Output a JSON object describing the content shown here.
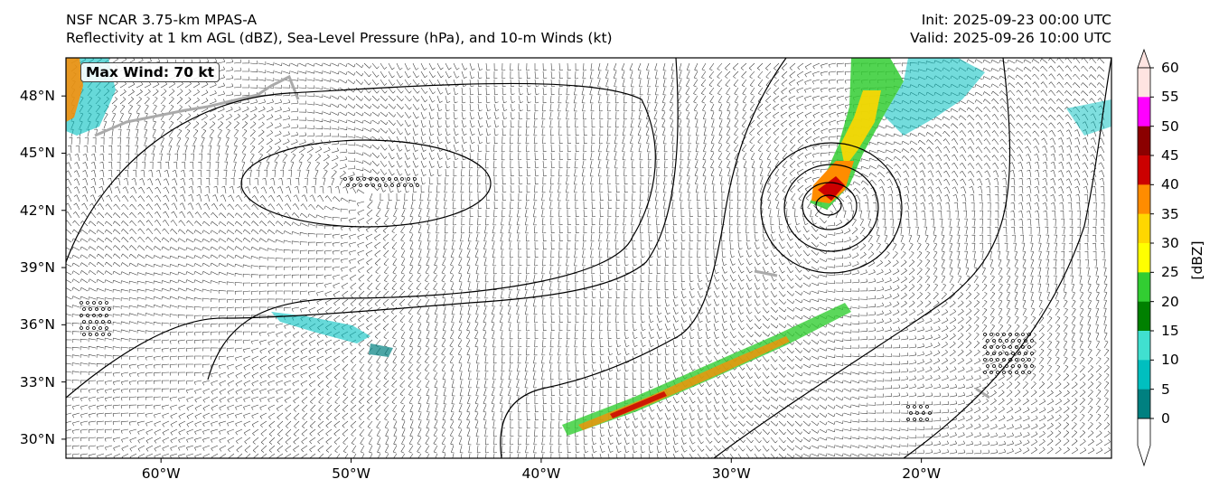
{
  "header": {
    "model_title": "NSF NCAR 3.75-km MPAS-A",
    "fields_title": "Reflectivity at 1 km AGL (dBZ), Sea-Level Pressure (hPa), and 10-m Winds (kt)",
    "init_time": "Init: 2025-09-23 00:00 UTC",
    "valid_time": "Valid: 2025-09-26 10:00 UTC"
  },
  "annotation": {
    "max_wind": "Max Wind: 70 kt"
  },
  "map": {
    "lat_range": [
      29,
      50
    ],
    "lon_range": [
      -65,
      -10
    ],
    "lat_ticks": [
      {
        "value": 48,
        "label": "48°N"
      },
      {
        "value": 45,
        "label": "45°N"
      },
      {
        "value": 42,
        "label": "42°N"
      },
      {
        "value": 39,
        "label": "39°N"
      },
      {
        "value": 36,
        "label": "36°N"
      },
      {
        "value": 33,
        "label": "33°N"
      },
      {
        "value": 30,
        "label": "30°N"
      }
    ],
    "lon_ticks": [
      {
        "value": -60,
        "label": "60°W"
      },
      {
        "value": -50,
        "label": "50°W"
      },
      {
        "value": -40,
        "label": "40°W"
      },
      {
        "value": -30,
        "label": "30°W"
      },
      {
        "value": -20,
        "label": "20°W"
      }
    ],
    "low_center": {
      "lat": 41.8,
      "lon": -25.2
    },
    "high_center": {
      "lat": 43.0,
      "lon": -49.0
    }
  },
  "colorbar": {
    "title": "[dBZ]",
    "ticks": [
      "60",
      "55",
      "50",
      "45",
      "40",
      "35",
      "30",
      "25",
      "20",
      "15",
      "10",
      "5",
      "0"
    ],
    "colors": [
      "#ffe4e1",
      "#ff00ff",
      "#8b0000",
      "#cc0000",
      "#ff8c00",
      "#ffd700",
      "#ffff00",
      "#32cd32",
      "#008000",
      "#40e0d0",
      "#00bfbf",
      "#008080"
    ],
    "extend_color": "#ffffff"
  }
}
